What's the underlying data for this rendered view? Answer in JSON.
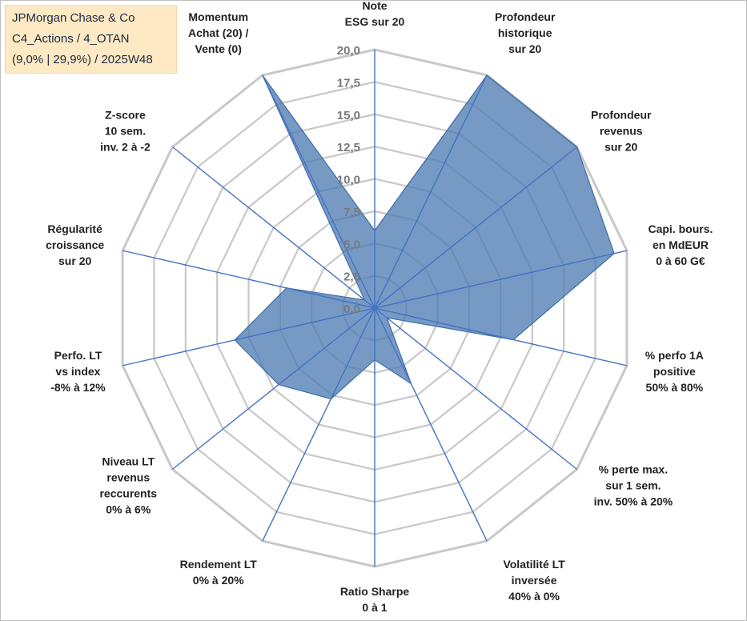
{
  "header": {
    "line1": "JPMorgan Chase & Co",
    "line2": "C4_Actions / 4_OTAN",
    "line3": "(9,0% | 29,9%) / 2025W48"
  },
  "colors": {
    "grid": "#c8c8c8",
    "spoke": "#4472c4",
    "fill": "#4f7db3",
    "info_bg": "#fde9c3"
  },
  "chart_data": {
    "type": "radar",
    "title": "",
    "rmax": 20,
    "ticks": [
      "0,0",
      "2,5",
      "5,0",
      "7,5",
      "10,0",
      "12,5",
      "15,0",
      "17,5",
      "20,0"
    ],
    "axes": [
      {
        "lines": [
          "Note",
          "ESG sur 20"
        ]
      },
      {
        "lines": [
          "Profondeur",
          "historique",
          "sur 20"
        ]
      },
      {
        "lines": [
          "Profondeur",
          "revenus",
          "sur 20"
        ]
      },
      {
        "lines": [
          "Capi. bours.",
          "en MdEUR",
          "0 à 60 G€"
        ]
      },
      {
        "lines": [
          "% perfo 1A",
          "positive",
          "50% à 80%"
        ]
      },
      {
        "lines": [
          "% perte max.",
          "sur 1 sem.",
          "inv. 50% à 20%"
        ]
      },
      {
        "lines": [
          "Volatilité LT",
          "inversée",
          "40% à 0%"
        ]
      },
      {
        "lines": [
          "Ratio Sharpe",
          "0 à 1"
        ]
      },
      {
        "lines": [
          "Rendement LT",
          "0% à 20%"
        ]
      },
      {
        "lines": [
          "Niveau LT",
          "revenus",
          "reccurents",
          "0% à 6%"
        ]
      },
      {
        "lines": [
          "Perfo. LT",
          "vs index",
          "-8% à 12%"
        ]
      },
      {
        "lines": [
          "Régularité",
          "croissance",
          "sur 20"
        ]
      },
      {
        "lines": [
          "Z-score",
          "10 sem.",
          "inv. 2 à -2"
        ]
      },
      {
        "lines": [
          "Momentum",
          "Achat (20) /",
          "Vente (0)"
        ]
      }
    ],
    "series": [
      {
        "name": "JPMorgan Chase & Co",
        "values": [
          6,
          20,
          20,
          19,
          11,
          1.2,
          6.5,
          4,
          7.8,
          9.5,
          11.1,
          7,
          1,
          20
        ]
      }
    ]
  }
}
